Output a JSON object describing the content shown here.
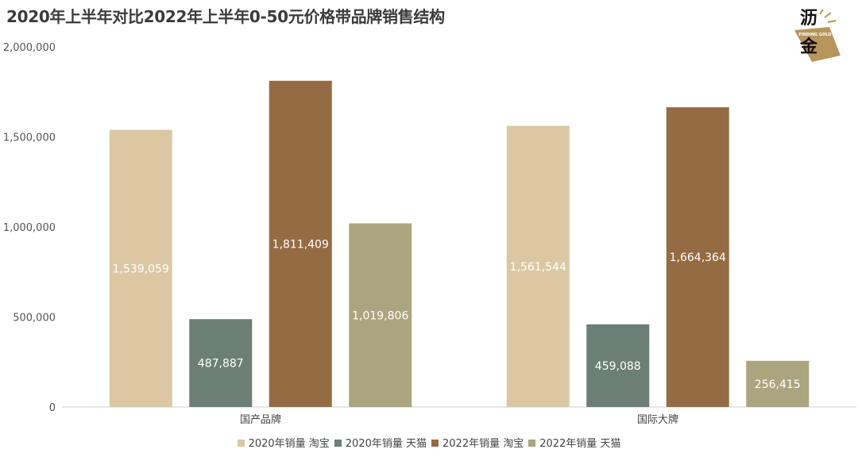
{
  "title": "2020年上半年对比2022年上半年0-50元价格带品牌销售结构",
  "logo": {
    "text_top": "沥",
    "text_bottom": "金",
    "tagline": "FINDING GOLD",
    "color": "#b8955c"
  },
  "chart_data": {
    "type": "bar",
    "categories": [
      "国产品牌",
      "国际大牌"
    ],
    "ylim": [
      0,
      2000000
    ],
    "yticks": [
      0,
      500000,
      1000000,
      1500000,
      2000000
    ],
    "ytick_labels": [
      "0",
      "500,000",
      "1,000,000",
      "1,500,000",
      "2,000,000"
    ],
    "series": [
      {
        "name": "2020年销量 淘宝",
        "color": "#dbc8a3",
        "values": [
          1539059,
          1561544
        ],
        "labels": [
          "1,539,059",
          "1,561,544"
        ]
      },
      {
        "name": "2020年销量 天猫",
        "color": "#6b7f76",
        "values": [
          487887,
          459088
        ],
        "labels": [
          "487,887",
          "459,088"
        ]
      },
      {
        "name": "2022年销量 淘宝",
        "color": "#956b43",
        "values": [
          1811409,
          1664364
        ],
        "labels": [
          "1,811,409",
          "1,664,364"
        ]
      },
      {
        "name": "2022年销量 天猫",
        "color": "#aba57f",
        "values": [
          1019806,
          256415
        ],
        "labels": [
          "1,019,806",
          "256,415"
        ]
      }
    ],
    "grid": false,
    "legend_position": "bottom"
  }
}
